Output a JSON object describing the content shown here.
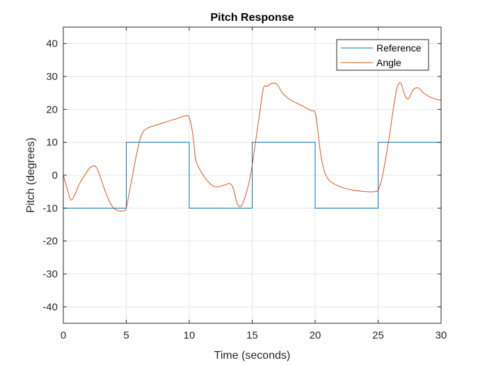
{
  "chart_data": {
    "type": "line",
    "title": "Pitch Response",
    "xlabel": "Time (seconds)",
    "ylabel": "Pitch (degrees)",
    "xlim": [
      0,
      30
    ],
    "ylim": [
      -45,
      45
    ],
    "xticks": [
      0,
      5,
      10,
      15,
      20,
      25,
      30
    ],
    "yticks": [
      -40,
      -30,
      -20,
      -10,
      0,
      10,
      20,
      30,
      40
    ],
    "xtick_labels": [
      "0",
      "5",
      "10",
      "15",
      "20",
      "25",
      "30"
    ],
    "ytick_labels": [
      "-40",
      "-30",
      "-20",
      "-10",
      "0",
      "10",
      "20",
      "30",
      "40"
    ],
    "grid": true,
    "legend_position": "top-right",
    "series": [
      {
        "name": "Reference",
        "color": "#0072BD",
        "step": true,
        "x": [
          0,
          5,
          5,
          10,
          10,
          15,
          15,
          20,
          20,
          25,
          25,
          30,
          30
        ],
        "y": [
          -10,
          -10,
          10,
          10,
          -10,
          -10,
          10,
          10,
          -10,
          -10,
          10,
          10,
          -10
        ]
      },
      {
        "name": "Angle",
        "color": "#D95319",
        "x": [
          0,
          0.3,
          0.6,
          0.9,
          1.3,
          1.7,
          2.1,
          2.5,
          2.8,
          3.2,
          3.6,
          4.0,
          4.4,
          4.8,
          5.0,
          5.2,
          5.5,
          5.8,
          6.1,
          6.4,
          6.8,
          7.2,
          8.0,
          9.0,
          9.7,
          10.0,
          10.3,
          10.5,
          10.8,
          11.3,
          12.0,
          12.8,
          13.2,
          13.5,
          13.8,
          14.1,
          14.4,
          14.7,
          15.0,
          15.3,
          15.6,
          15.9,
          16.2,
          16.6,
          17.0,
          17.4,
          18.0,
          19.0,
          19.6,
          20.0,
          20.2,
          20.5,
          21.0,
          22.0,
          23.0,
          24.0,
          24.7,
          25.0,
          25.3,
          25.6,
          25.9,
          26.2,
          26.5,
          26.8,
          27.1,
          27.4,
          27.8,
          28.2,
          28.6,
          29.0,
          29.5,
          30.0
        ],
        "y": [
          0,
          -4,
          -7.5,
          -6,
          -2.5,
          0,
          2.2,
          2.8,
          1,
          -3.5,
          -7.5,
          -10,
          -10.8,
          -10.8,
          -10,
          -6,
          0,
          6,
          11,
          13.5,
          14.5,
          15,
          16,
          17.2,
          18,
          17.5,
          12,
          5,
          2,
          -1,
          -3.5,
          -3,
          -2.5,
          -4,
          -8.5,
          -9.5,
          -7,
          -3,
          3,
          11,
          19,
          26.5,
          27,
          28,
          27.5,
          25,
          23,
          21,
          19.8,
          19,
          14,
          5,
          -1,
          -3.5,
          -4.5,
          -5,
          -5,
          -4.5,
          -1,
          5,
          12,
          20,
          26.5,
          28,
          24.5,
          23.2,
          26,
          26.5,
          25,
          24,
          23.2,
          22.8
        ]
      }
    ]
  }
}
